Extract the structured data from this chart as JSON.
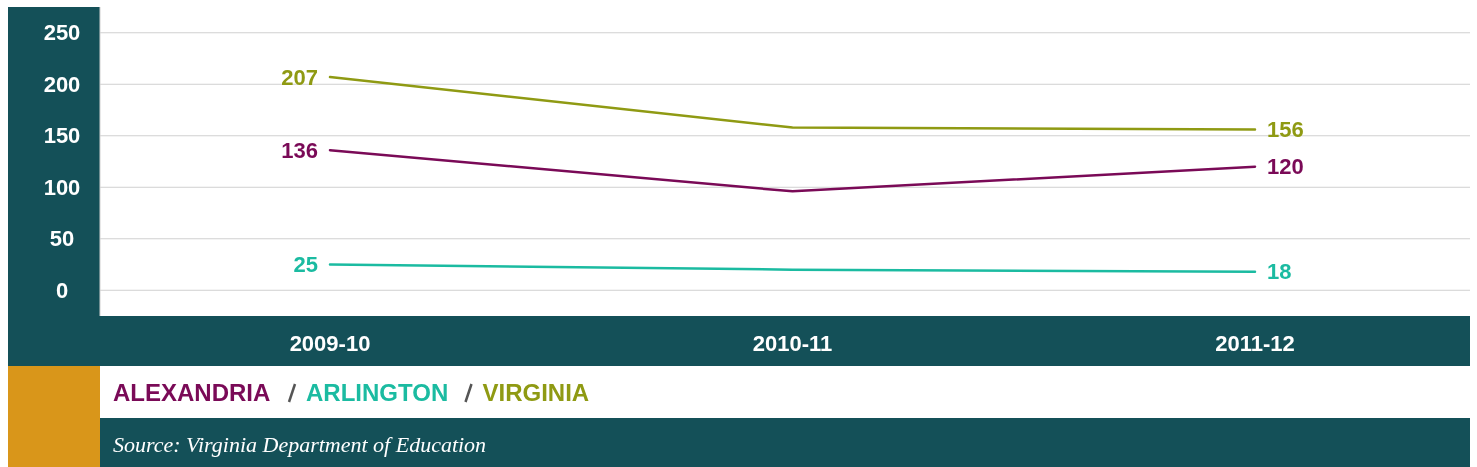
{
  "chart_data": {
    "type": "line",
    "categories": [
      "2009-10",
      "2010-11",
      "2011-12"
    ],
    "series": [
      {
        "name": "ALEXANDRIA",
        "color": "#7a0a57",
        "values": [
          136,
          96,
          120
        ],
        "value_labels": [
          "136",
          null,
          "120"
        ]
      },
      {
        "name": "ARLINGTON",
        "color": "#1bbba1",
        "values": [
          25,
          20,
          18
        ],
        "value_labels": [
          "25",
          null,
          "18"
        ]
      },
      {
        "name": "VIRGINIA",
        "color": "#8f9a13",
        "values": [
          207,
          158,
          156
        ],
        "value_labels": [
          "207",
          null,
          "156"
        ]
      }
    ],
    "ylim": [
      -25,
      275
    ],
    "yticks": [
      0,
      50,
      100,
      150,
      200,
      250
    ],
    "grid": "y",
    "legend": "bottom",
    "marker": "none",
    "line_style": "solid",
    "annotations": [
      "Source: Virginia Department of Education"
    ]
  }
}
